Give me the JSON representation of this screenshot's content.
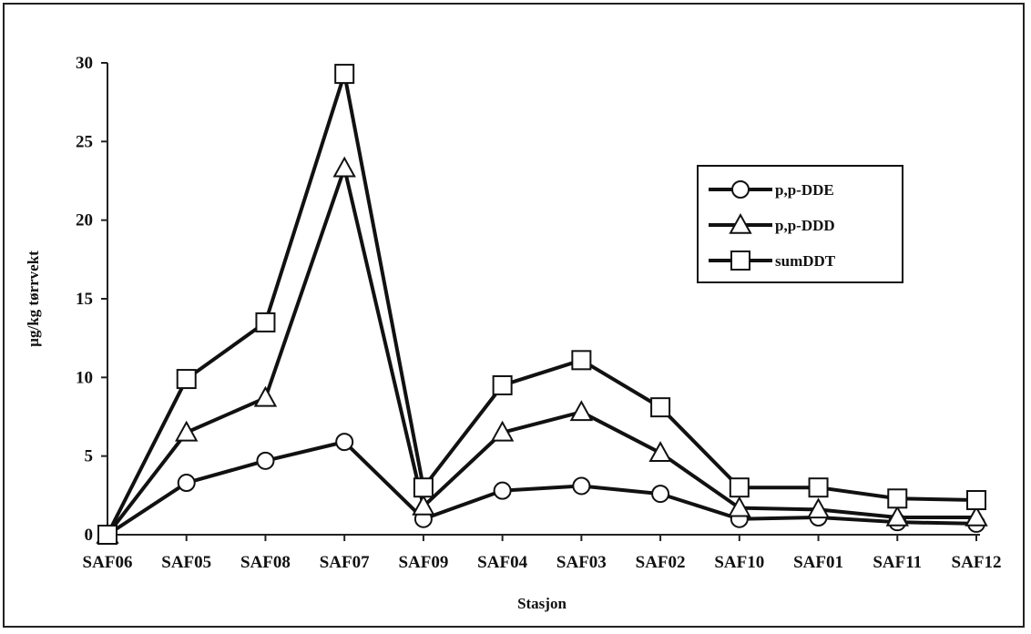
{
  "chart_data": {
    "type": "line",
    "categories": [
      "SAF06",
      "SAF05",
      "SAF08",
      "SAF07",
      "SAF09",
      "SAF04",
      "SAF03",
      "SAF02",
      "SAF10",
      "SAF01",
      "SAF11",
      "SAF12"
    ],
    "series": [
      {
        "name": "p,p-DDE",
        "marker": "circle",
        "values": [
          0,
          3.3,
          4.7,
          5.9,
          1.0,
          2.8,
          3.1,
          2.6,
          1.0,
          1.1,
          0.8,
          0.7
        ]
      },
      {
        "name": "p,p-DDD",
        "marker": "triangle",
        "values": [
          0,
          6.5,
          8.7,
          23.3,
          1.8,
          6.5,
          7.8,
          5.2,
          1.7,
          1.6,
          1.1,
          1.1
        ]
      },
      {
        "name": "sumDDT",
        "marker": "square",
        "values": [
          0,
          9.9,
          13.5,
          29.3,
          3.0,
          9.5,
          11.1,
          8.1,
          3.0,
          3.0,
          2.3,
          2.2
        ]
      }
    ],
    "xlabel": "Stasjon",
    "ylabel": "µg/kg tørrvekt",
    "ylim": [
      0,
      30
    ],
    "yticks": [
      0,
      5,
      10,
      15,
      20,
      25,
      30
    ],
    "grid": false,
    "legend_position": "right"
  }
}
